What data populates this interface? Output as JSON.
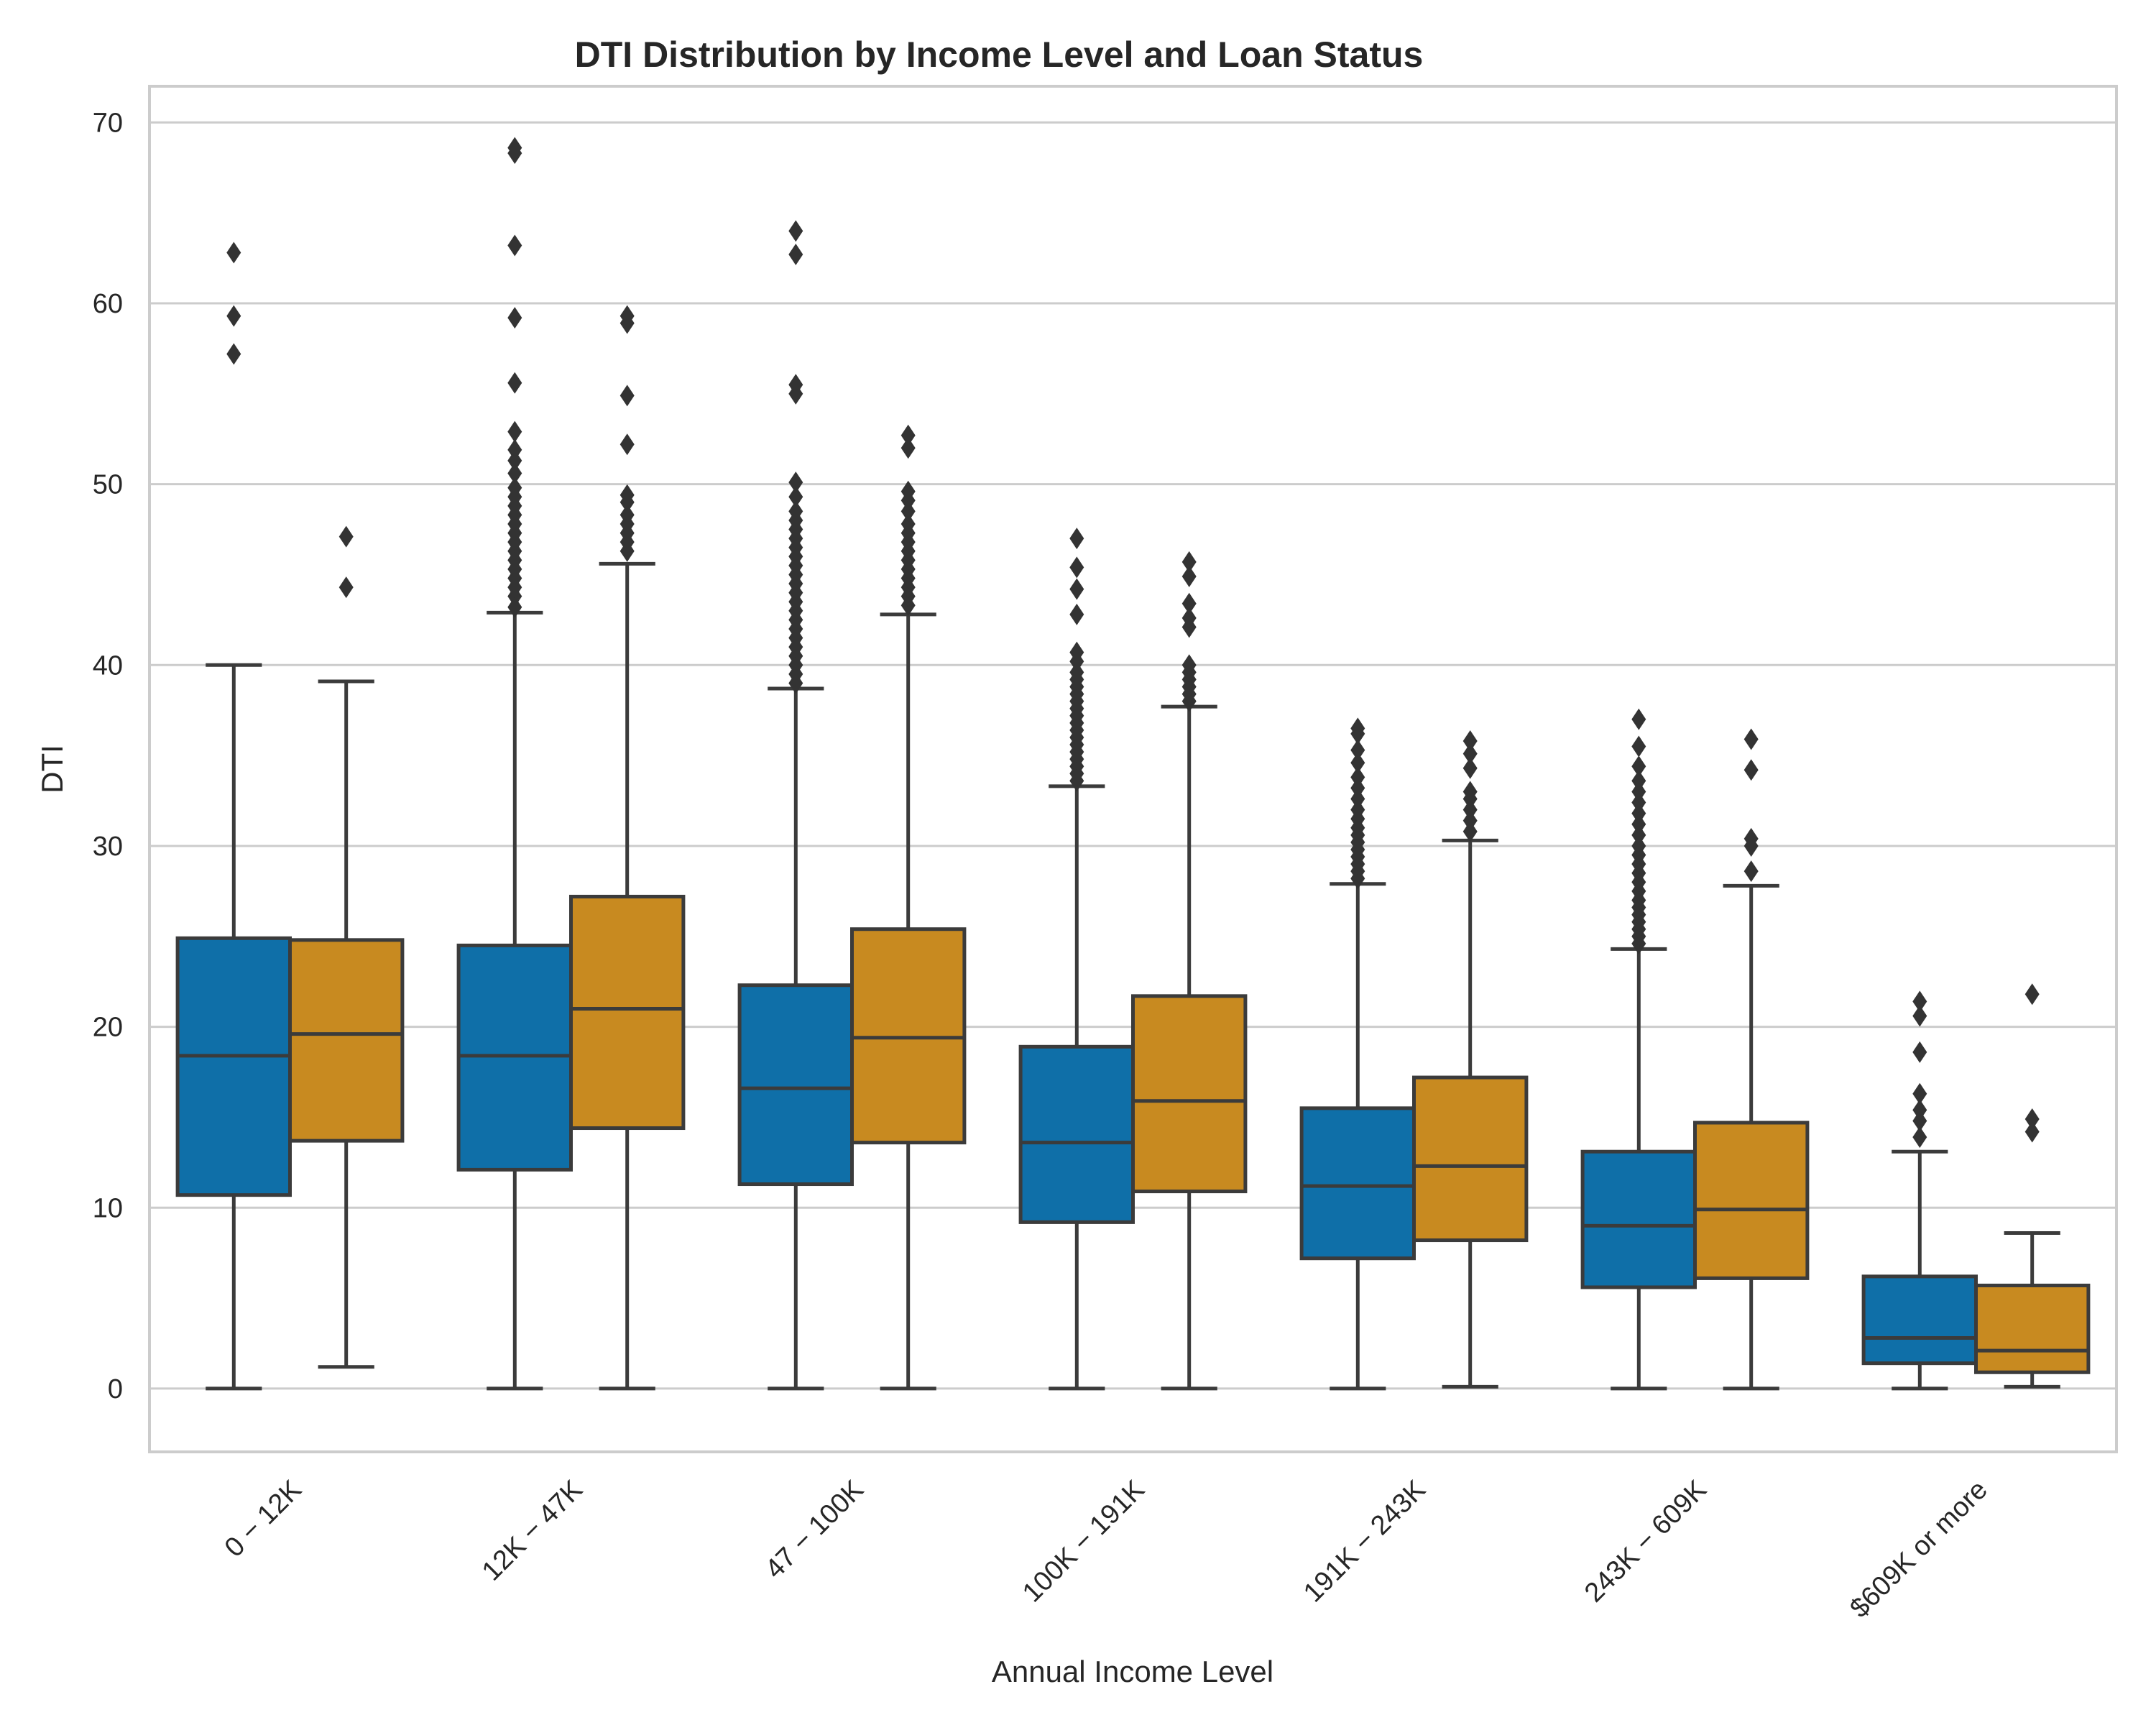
{
  "chart_data": {
    "type": "box",
    "title": "DTI Distribution by Income Level and Loan Status",
    "xlabel": "Annual Income Level",
    "ylabel": "DTI",
    "ylim": [
      -3.5,
      72
    ],
    "yticks": [
      0,
      10,
      20,
      30,
      40,
      50,
      60,
      70
    ],
    "grid": true,
    "categories": [
      "0 − 12K",
      "12K − 47K",
      "47 − 100K",
      "100K − 191K",
      "191K − 243K",
      "243K − 609K",
      "$609K or more"
    ],
    "series": [
      {
        "color": "#0f6fa8",
        "boxes": [
          {
            "whisker_low": 0,
            "q1": 10.7,
            "median": 18.4,
            "q3": 24.9,
            "whisker_high": 40.0,
            "outliers": [
              57.2,
              59.3,
              62.8
            ]
          },
          {
            "whisker_low": 0,
            "q1": 12.1,
            "median": 18.4,
            "q3": 24.5,
            "whisker_high": 42.9,
            "outliers": [
              43.2,
              43.8,
              44.3,
              44.8,
              45.3,
              45.8,
              46.3,
              46.8,
              47.3,
              47.8,
              48.3,
              48.8,
              49.3,
              49.8,
              50.6,
              51.3,
              51.9,
              52.9,
              55.6,
              59.2,
              63.2,
              68.3,
              68.6
            ]
          },
          {
            "whisker_low": 0,
            "q1": 11.3,
            "median": 16.6,
            "q3": 22.3,
            "whisker_high": 38.7,
            "outliers": [
              39.0,
              39.5,
              40.0,
              40.5,
              41.0,
              41.5,
              42.0,
              42.5,
              43.0,
              43.5,
              44.0,
              44.5,
              45.0,
              45.5,
              46.0,
              46.5,
              47.0,
              47.5,
              48.0,
              48.5,
              49.3,
              50.1,
              55.0,
              55.5,
              62.7,
              64.0
            ]
          },
          {
            "whisker_low": 0,
            "q1": 9.2,
            "median": 13.6,
            "q3": 18.9,
            "whisker_high": 33.3,
            "outliers": [
              33.6,
              34.0,
              34.4,
              34.8,
              35.2,
              35.6,
              36.0,
              36.4,
              36.8,
              37.2,
              37.6,
              38.0,
              38.4,
              38.8,
              39.2,
              39.6,
              40.2,
              40.7,
              42.8,
              44.2,
              45.4,
              47.0
            ]
          },
          {
            "whisker_low": 0,
            "q1": 7.2,
            "median": 11.2,
            "q3": 15.5,
            "whisker_high": 27.9,
            "outliers": [
              28.2,
              28.6,
              29.0,
              29.4,
              29.8,
              30.2,
              30.6,
              31.0,
              31.5,
              32.0,
              32.6,
              33.2,
              33.8,
              34.6,
              35.3,
              36.2,
              36.5
            ]
          },
          {
            "whisker_low": 0,
            "q1": 5.6,
            "median": 9.0,
            "q3": 13.1,
            "whisker_high": 24.3,
            "outliers": [
              24.6,
              25.0,
              25.4,
              25.8,
              26.2,
              26.6,
              27.0,
              27.5,
              28.0,
              28.5,
              29.0,
              29.5,
              30.0,
              30.6,
              31.2,
              31.8,
              32.4,
              33.0,
              33.6,
              34.4,
              35.5,
              37.0
            ]
          },
          {
            "whisker_low": 0,
            "q1": 1.4,
            "median": 2.8,
            "q3": 6.2,
            "whisker_high": 13.1,
            "outliers": [
              13.9,
              14.8,
              15.4,
              16.3,
              18.6,
              20.6,
              21.4
            ]
          }
        ]
      },
      {
        "color": "#c88a20",
        "boxes": [
          {
            "whisker_low": 1.2,
            "q1": 13.7,
            "median": 19.6,
            "q3": 24.8,
            "whisker_high": 39.1,
            "outliers": [
              44.3,
              47.1
            ]
          },
          {
            "whisker_low": 0,
            "q1": 14.4,
            "median": 21.0,
            "q3": 27.2,
            "whisker_high": 45.6,
            "outliers": [
              46.3,
              46.8,
              47.3,
              47.8,
              48.3,
              49.0,
              49.4,
              52.2,
              54.9,
              58.9,
              59.3
            ]
          },
          {
            "whisker_low": 0,
            "q1": 13.6,
            "median": 19.4,
            "q3": 25.4,
            "whisker_high": 42.8,
            "outliers": [
              43.3,
              43.8,
              44.3,
              44.8,
              45.3,
              45.8,
              46.3,
              46.8,
              47.3,
              47.8,
              48.5,
              49.1,
              49.6,
              52.0,
              52.7
            ]
          },
          {
            "whisker_low": 0,
            "q1": 10.9,
            "median": 15.9,
            "q3": 21.7,
            "whisker_high": 37.7,
            "outliers": [
              38.0,
              38.4,
              38.8,
              39.2,
              39.6,
              40.0,
              42.1,
              42.6,
              43.4,
              44.9,
              45.7
            ]
          },
          {
            "whisker_low": 0.1,
            "q1": 8.2,
            "median": 12.3,
            "q3": 17.2,
            "whisker_high": 30.3,
            "outliers": [
              30.8,
              31.4,
              32.0,
              32.6,
              33.0,
              34.3,
              35.1,
              35.8
            ]
          },
          {
            "whisker_low": 0,
            "q1": 6.1,
            "median": 9.9,
            "q3": 14.7,
            "whisker_high": 27.8,
            "outliers": [
              28.6,
              30.0,
              30.4,
              34.2,
              35.9
            ]
          },
          {
            "whisker_low": 0.1,
            "q1": 0.9,
            "median": 2.1,
            "q3": 5.7,
            "whisker_high": 8.6,
            "outliers": [
              14.2,
              14.9,
              21.8
            ]
          }
        ]
      }
    ]
  }
}
